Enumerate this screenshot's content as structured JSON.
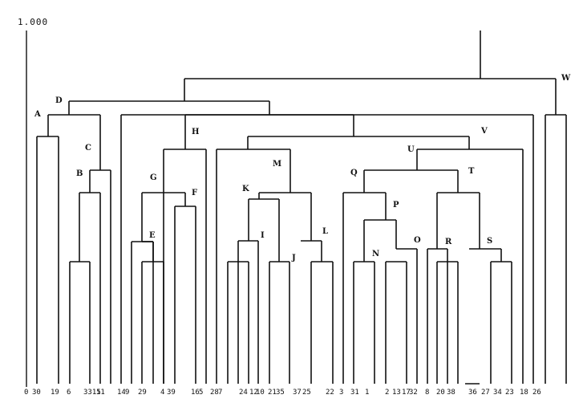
{
  "scale_label": "1.000",
  "leaf_labels": [
    "0",
    "30",
    "19",
    "6",
    "3315",
    "11",
    "14",
    "9",
    "29",
    "4",
    "39",
    "16",
    "5",
    "28",
    "7",
    "24",
    "12",
    "10",
    "21",
    "35",
    "37",
    "25",
    "22",
    "3",
    "31",
    "1",
    "2",
    "13",
    "17",
    "32",
    "8",
    "20",
    "38",
    "36",
    "27",
    "34",
    "23",
    "18",
    "26"
  ],
  "node_labels": [
    "A",
    "B",
    "C",
    "D",
    "E",
    "F",
    "G",
    "H",
    "I",
    "J",
    "K",
    "L",
    "M",
    "N",
    "O",
    "P",
    "Q",
    "R",
    "S",
    "T",
    "U",
    "V",
    "W"
  ]
}
